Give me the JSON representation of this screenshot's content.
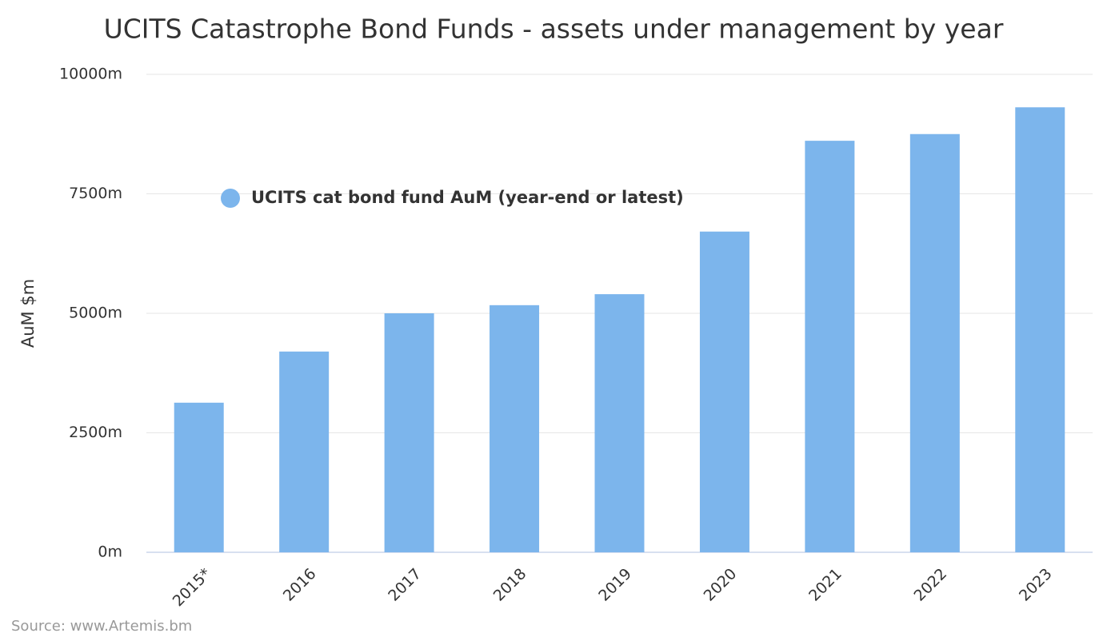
{
  "chart_data": {
    "type": "bar",
    "title": "UCITS Catastrophe Bond Funds - assets under management by year",
    "y_label": "AuM $m",
    "source": "Source: www.Artemis.bm",
    "categories": [
      "2015*",
      "2016",
      "2017",
      "2018",
      "2019",
      "2020",
      "2021",
      "2022",
      "2023"
    ],
    "series": [
      {
        "name": "UCITS cat bond fund AuM (year-end or latest)",
        "color": "#7cb5ec",
        "values": [
          3130,
          4200,
          5000,
          5170,
          5400,
          6710,
          8610,
          8750,
          9310
        ]
      }
    ],
    "ylim": [
      0,
      10000
    ],
    "yticks": [
      {
        "value": 0,
        "label": "0m"
      },
      {
        "value": 2500,
        "label": "2500m"
      },
      {
        "value": 5000,
        "label": "5000m"
      },
      {
        "value": 7500,
        "label": "7500m"
      },
      {
        "value": 10000,
        "label": "10000m"
      }
    ],
    "grid": true,
    "legend": "inside-top-left"
  }
}
